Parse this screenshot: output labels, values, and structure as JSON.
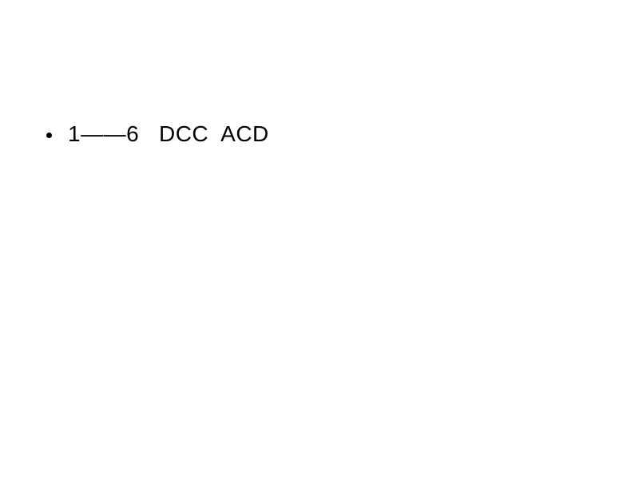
{
  "slide": {
    "background_color": "#ffffff",
    "text_color": "#000000",
    "font_size_pt": 21,
    "bullets": [
      {
        "text": "1——6   DCC  ACD"
      }
    ]
  }
}
